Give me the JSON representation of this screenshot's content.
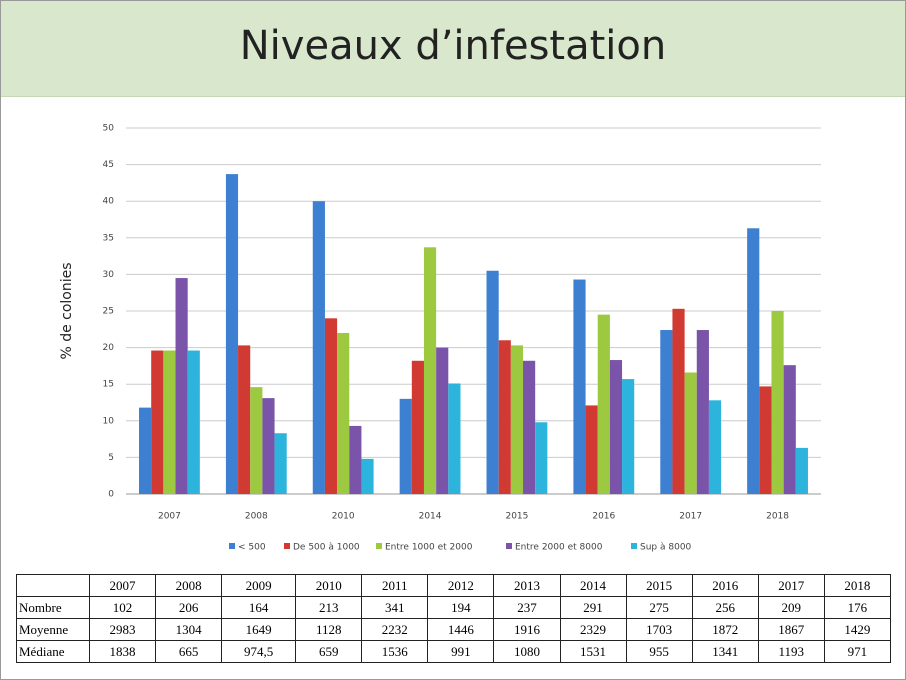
{
  "chart_data": {
    "type": "bar",
    "title": "Niveaux d’infestation",
    "y_label": "% de colonies",
    "categories": [
      "2007",
      "2008",
      "2010",
      "2014",
      "2015",
      "2016",
      "2017",
      "2018"
    ],
    "series": [
      {
        "name": "< 500",
        "color": "#3d7fd0",
        "values": [
          11.8,
          43.7,
          40,
          13,
          30.5,
          29.3,
          22.4,
          36.3
        ]
      },
      {
        "name": "De 500 à 1000",
        "color": "#d13a32",
        "values": [
          19.6,
          20.3,
          24,
          18.2,
          21,
          12.1,
          25.3,
          14.7
        ]
      },
      {
        "name": "Entre 1000 et 2000",
        "color": "#9cc93f",
        "values": [
          19.6,
          14.6,
          22,
          33.7,
          20.3,
          24.5,
          16.6,
          25
        ]
      },
      {
        "name": "Entre 2000 et 8000",
        "color": "#7a54a8",
        "values": [
          29.5,
          13.1,
          9.3,
          20,
          18.2,
          18.3,
          22.4,
          17.6
        ]
      },
      {
        "name": "Sup à 8000",
        "color": "#2cb4dc",
        "values": [
          19.6,
          8.3,
          4.8,
          15.1,
          9.8,
          15.7,
          12.8,
          6.3
        ]
      }
    ],
    "ylim": [
      0,
      50
    ],
    "yticks": [
      0,
      5,
      10,
      15,
      20,
      25,
      30,
      35,
      40,
      45,
      50
    ],
    "grid": true,
    "legend": "bottom"
  },
  "table": {
    "header": [
      "2007",
      "2008",
      "2009",
      "2010",
      "2011",
      "2012",
      "2013",
      "2014",
      "2015",
      "2016",
      "2017",
      "2018"
    ],
    "rows": [
      {
        "label": "Nombre",
        "values": [
          "102",
          "206",
          "164",
          "213",
          "341",
          "194",
          "237",
          "291",
          "275",
          "256",
          "209",
          "176"
        ]
      },
      {
        "label": "Moyenne",
        "values": [
          "2983",
          "1304",
          "1649",
          "1128",
          "2232",
          "1446",
          "1916",
          "2329",
          "1703",
          "1872",
          "1867",
          "1429"
        ]
      },
      {
        "label": "Médiane",
        "values": [
          "1838",
          "665",
          "974,5",
          "659",
          "1536",
          "991",
          "1080",
          "1531",
          "955",
          "1341",
          "1193",
          "971"
        ]
      }
    ]
  }
}
